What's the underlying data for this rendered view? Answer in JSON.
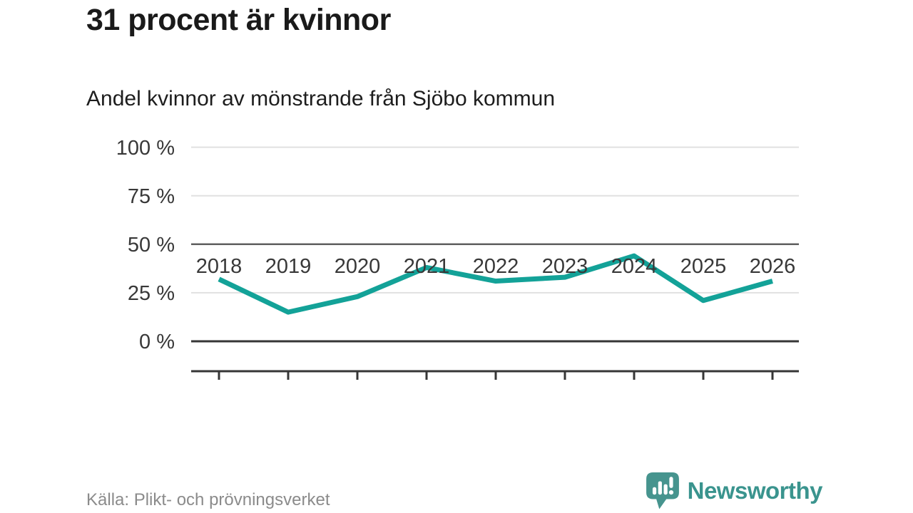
{
  "header": {
    "title": "31 procent är kvinnor",
    "subtitle": "Andel kvinnor av mönstrande från Sjöbo kommun"
  },
  "footer": {
    "source": "Källa: Plikt- och prövningsverket",
    "brand": "Newsworthy"
  },
  "colors": {
    "line": "#13a298",
    "grid_light": "#e1e1e1",
    "grid_mid": "#5f5f5f",
    "grid_dark": "#363636",
    "axis": "#363636",
    "tick_label": "#383838",
    "title": "#1a1a1a",
    "source_text": "#8b8b8b",
    "brand_teal": "#3a948e",
    "logo_bubble": "#46948e"
  },
  "chart_data": {
    "type": "line",
    "title": "31 procent är kvinnor",
    "subtitle": "Andel kvinnor av mönstrande från Sjöbo kommun",
    "x": [
      "2018",
      "2019",
      "2020",
      "2021",
      "2022",
      "2023",
      "2024",
      "2025",
      "2026"
    ],
    "series": [
      {
        "name": "Andel kvinnor av mönstrande",
        "values": [
          32,
          15,
          23,
          38,
          31,
          33,
          44,
          21,
          31
        ]
      }
    ],
    "unit": "%",
    "ylim": [
      0,
      100
    ],
    "yticks": [
      {
        "value": 0,
        "label": "0 %",
        "style": "dark"
      },
      {
        "value": 25,
        "label": "25 %",
        "style": "light"
      },
      {
        "value": 50,
        "label": "50 %",
        "style": "mid"
      },
      {
        "value": 75,
        "label": "75 %",
        "style": "light"
      },
      {
        "value": 100,
        "label": "100 %",
        "style": "light"
      }
    ],
    "grid": true,
    "legend": "none",
    "line_color": "#13a298",
    "line_width": 7
  }
}
